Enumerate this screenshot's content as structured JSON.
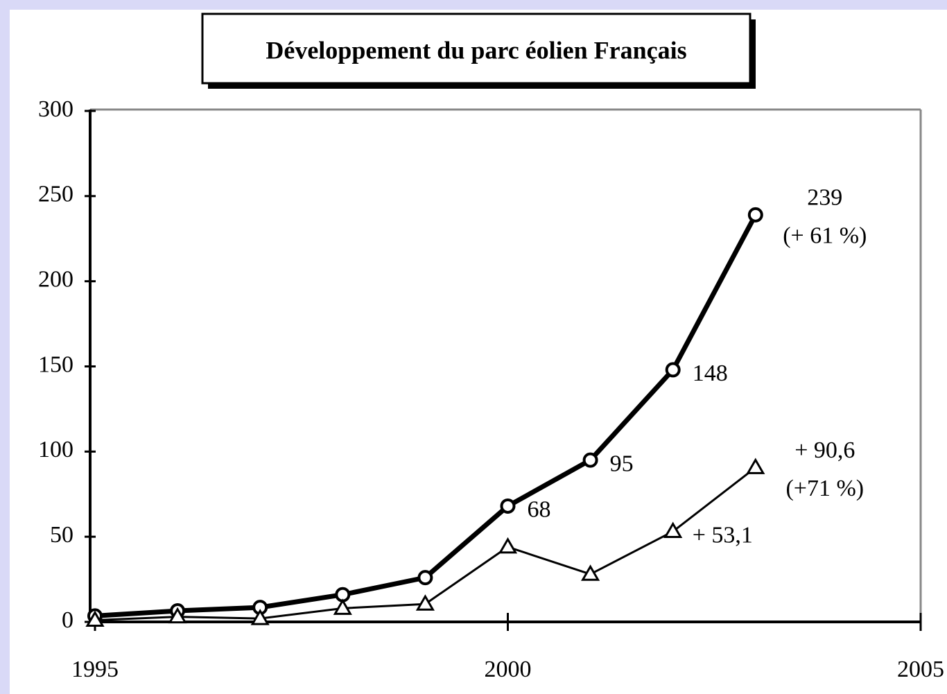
{
  "chart_data": {
    "type": "line",
    "title": "Développement du parc éolien Français",
    "x": [
      1995,
      1996,
      1997,
      1998,
      1999,
      2000,
      2001,
      2002,
      2003
    ],
    "series": [
      {
        "color": "#000000",
        "marker": "circle",
        "values": [
          3.5,
          6.5,
          8.5,
          16,
          26,
          68,
          95,
          148,
          239
        ],
        "value_labels": [
          null,
          null,
          null,
          null,
          null,
          "68",
          "95",
          "148",
          "239"
        ]
      },
      {
        "color": "#000000",
        "marker": "triangle",
        "values": [
          1,
          3,
          2,
          8,
          10.5,
          44,
          28,
          53.1,
          90.6
        ],
        "value_labels": [
          null,
          null,
          null,
          null,
          null,
          null,
          null,
          "+ 53,1",
          "+ 90,6"
        ]
      }
    ],
    "annotations": [
      "(+ 61 %)",
      "(+71 %)"
    ],
    "xlim": [
      1995,
      2005
    ],
    "xticks": [
      1995,
      2000,
      2005
    ],
    "ylim": [
      0,
      300
    ],
    "yticks": [
      0,
      50,
      100,
      150,
      200,
      250,
      300
    ]
  }
}
